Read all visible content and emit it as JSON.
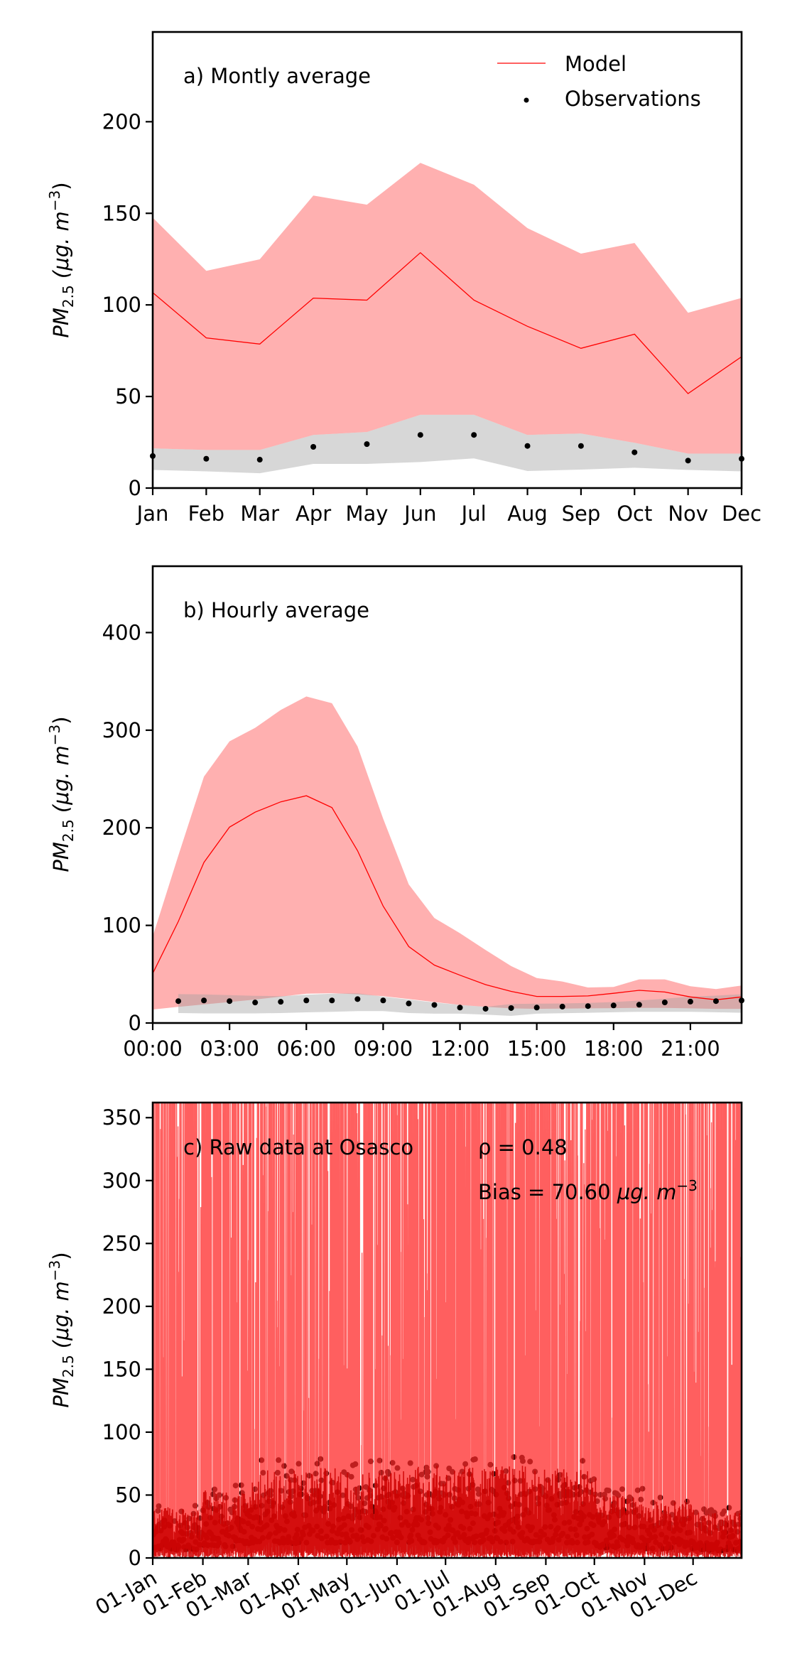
{
  "figure": {
    "colors": {
      "model_line": "#ff0000",
      "model_band": "#ffb0b0",
      "obs_band": "#a0a0a0",
      "obs_dot": "#000000",
      "axis": "#000000",
      "raw_model": "#ff2a2a"
    }
  },
  "legend": {
    "model_label": "Model",
    "obs_label": "Observations",
    "placement": "top-right of panel a"
  },
  "chart_data": [
    {
      "id": "a",
      "type": "line",
      "title": "a) Montly average",
      "xlabel": "",
      "ylabel_main": "PM",
      "ylabel_sub": "2.5",
      "ylabel_unit": " (μg. m",
      "ylabel_sup": "−3",
      "ylabel_close": ")",
      "categories": [
        "Jan",
        "Feb",
        "Mar",
        "Apr",
        "May",
        "Jun",
        "Jul",
        "Aug",
        "Sep",
        "Oct",
        "Nov",
        "Dec"
      ],
      "x": [
        0,
        1,
        2,
        3,
        4,
        5,
        6,
        7,
        8,
        9,
        10,
        11
      ],
      "xlim": [
        0,
        11
      ],
      "ylim": [
        0,
        249
      ],
      "yticks": [
        0,
        50,
        100,
        150,
        200
      ],
      "series": [
        {
          "name": "Model",
          "kind": "line",
          "values": [
            106.7,
            82,
            78.6,
            103.7,
            102.6,
            128.5,
            102.6,
            88.3,
            76.3,
            84,
            51.6,
            71.7
          ]
        },
        {
          "name": "Model band upper",
          "kind": "band_upper",
          "values": [
            147.6,
            118.6,
            124.9,
            159.7,
            154.7,
            177.5,
            165.6,
            141.9,
            128,
            133.8,
            95.7,
            103.8
          ]
        },
        {
          "name": "Model band lower",
          "kind": "band_lower",
          "values": [
            21.7,
            20.8,
            20.8,
            29,
            30.6,
            40,
            40,
            29,
            29.8,
            24.7,
            18.8,
            18.8
          ]
        },
        {
          "name": "Observations",
          "kind": "points",
          "values": [
            17.5,
            16,
            15.5,
            22.5,
            24,
            29,
            29,
            23,
            23,
            19.5,
            15,
            16
          ]
        },
        {
          "name": "Observations band upper",
          "kind": "obs_band_upper",
          "values": [
            21.7,
            20.8,
            20.8,
            29,
            30.6,
            40,
            40,
            29,
            29.8,
            24.7,
            18.8,
            18.8
          ]
        },
        {
          "name": "Observations band lower",
          "kind": "obs_band_lower",
          "values": [
            9.9,
            9.1,
            8.1,
            13.2,
            13.2,
            14.2,
            16.2,
            9.3,
            10.1,
            11.1,
            9.9,
            9.1
          ]
        },
        {
          "name": "Model band lower edge (overlap)",
          "kind": "overlap_lower",
          "values": [
            15.8,
            15.2,
            15.2,
            19.2,
            25.7,
            21.3,
            27.9,
            18.8,
            22,
            21.1,
            13.8,
            16.4
          ]
        }
      ]
    },
    {
      "id": "b",
      "type": "line",
      "title": "b) Hourly average",
      "xlabel": "",
      "ylabel_main": "PM",
      "ylabel_sub": "2.5",
      "ylabel_unit": " (μg. m",
      "ylabel_sup": "−3",
      "ylabel_close": ")",
      "xlim": [
        0,
        23
      ],
      "ylim": [
        0,
        468
      ],
      "yticks": [
        0,
        100,
        200,
        300,
        400
      ],
      "xticks": [
        0,
        3,
        6,
        9,
        12,
        15,
        18,
        21
      ],
      "xtick_labels": [
        "00:00",
        "03:00",
        "06:00",
        "09:00",
        "12:00",
        "15:00",
        "18:00",
        "21:00"
      ],
      "series": [
        {
          "name": "Model",
          "kind": "line",
          "x": [
            0,
            1,
            2,
            3,
            4,
            5,
            6,
            7,
            8,
            9,
            10,
            11,
            12,
            13,
            14,
            15,
            16,
            17,
            18,
            19,
            20,
            21,
            22,
            23
          ],
          "values": [
            50.7,
            104,
            164.5,
            200.7,
            216,
            226.6,
            232.8,
            220.7,
            176.6,
            119.7,
            78.3,
            59.3,
            49,
            39.3,
            32.4,
            27.2,
            27.2,
            27.7,
            30.4,
            33.5,
            31.7,
            26.7,
            23.8,
            26.7
          ]
        },
        {
          "name": "Model band upper",
          "kind": "band_upper",
          "x": [
            0,
            1,
            2,
            3,
            4,
            5,
            6,
            7,
            8,
            9,
            10,
            11,
            12,
            13,
            14,
            15,
            16,
            17,
            18,
            19,
            20,
            21,
            22,
            23
          ],
          "values": [
            88.6,
            171.4,
            252.4,
            288.6,
            302.4,
            320.7,
            334.5,
            327.6,
            283.4,
            209.3,
            142,
            107.6,
            92,
            74.8,
            58.3,
            46.1,
            42.5,
            36.4,
            36.9,
            44.7,
            44.7,
            37.7,
            34.8,
            38.4
          ]
        },
        {
          "name": "Model band lower",
          "kind": "band_lower",
          "x": [
            0,
            1,
            2,
            3,
            4,
            5,
            6,
            7,
            8,
            9,
            10,
            11,
            12,
            13,
            14,
            15,
            16,
            17,
            18,
            19,
            20,
            21,
            22,
            23
          ],
          "values": [
            13.8,
            16.5,
            19,
            21.5,
            24,
            27,
            30,
            30.5,
            29.5,
            27.5,
            24.5,
            21.5,
            18.5,
            16.5,
            15,
            14.5,
            14.8,
            15,
            15.2,
            15.5,
            15.5,
            15,
            14.5,
            14.5
          ]
        },
        {
          "name": "Observations",
          "kind": "points",
          "x": [
            1,
            2,
            3,
            4,
            5,
            6,
            7,
            8,
            9,
            10,
            11,
            12,
            13,
            14,
            15,
            16,
            17,
            18,
            19,
            20,
            21,
            22,
            23
          ],
          "values": [
            22.4,
            23.1,
            22.4,
            21,
            21.7,
            23.1,
            23.1,
            24.5,
            23.1,
            20,
            18.5,
            15.8,
            14.6,
            15.3,
            15.8,
            16.8,
            17.3,
            18,
            18.7,
            21.1,
            21.9,
            22.4,
            23.1
          ]
        },
        {
          "name": "Observations band upper",
          "kind": "obs_band_upper",
          "x": [
            1,
            2,
            3,
            4,
            5,
            6,
            7,
            8,
            9,
            10,
            11,
            12,
            13,
            14,
            15,
            16,
            17,
            18,
            19,
            20,
            21,
            22,
            23
          ],
          "values": [
            29.6,
            29.3,
            28.5,
            27.8,
            27.5,
            29,
            30,
            30.5,
            27,
            24,
            21,
            18.5,
            16.5,
            19.5,
            19.8,
            20,
            20.5,
            21.5,
            23,
            25,
            27,
            28,
            29.5
          ]
        },
        {
          "name": "Observations band lower",
          "kind": "obs_band_lower",
          "x": [
            1,
            2,
            3,
            4,
            5,
            6,
            7,
            8,
            9,
            10,
            11,
            12,
            13,
            14,
            15,
            16,
            17,
            18,
            19,
            20,
            21,
            22,
            23
          ],
          "values": [
            10.2,
            9.8,
            9.8,
            9.8,
            10.2,
            10.9,
            11.5,
            12.2,
            12.2,
            10.2,
            9.5,
            9.5,
            8.5,
            7.3,
            9.5,
            10,
            10.5,
            11,
            11.5,
            11.5,
            11.5,
            11,
            10.5
          ]
        }
      ]
    },
    {
      "id": "c",
      "type": "line",
      "title": "c) Raw data at Osasco",
      "annotation_rho": "ρ = 0.48",
      "annotation_bias_prefix": "Bias = 70.60 ",
      "annotation_bias_unit": "μg. m",
      "annotation_bias_sup": "−3",
      "rho": 0.48,
      "bias": 70.6,
      "ylabel_main": "PM",
      "ylabel_sub": "2.5",
      "ylabel_unit": " (μg. m",
      "ylabel_sup": "−3",
      "ylabel_close": ")",
      "xlim_days": [
        0,
        364
      ],
      "ylim": [
        0,
        362
      ],
      "yticks": [
        0,
        50,
        100,
        150,
        200,
        250,
        300,
        350
      ],
      "xticks_days": [
        0,
        31,
        59,
        90,
        120,
        151,
        181,
        212,
        243,
        273,
        304,
        334
      ],
      "xtick_labels": [
        "01-Jan",
        "01-Feb",
        "01-Mar",
        "01-Apr",
        "01-May",
        "01-Jun",
        "01-Jul",
        "01-Aug",
        "01-Sep",
        "01-Oct",
        "01-Nov",
        "01-Dec"
      ],
      "series": [
        {
          "name": "Model (hourly, many spikes exceed axis top)",
          "kind": "raw_line",
          "typical_range": [
            0,
            362
          ]
        },
        {
          "name": "Observations (hourly points)",
          "kind": "raw_points",
          "typical_range": [
            0,
            82
          ],
          "monthly_peak_envelope": [
            45,
            60,
            78,
            80,
            78,
            82,
            82,
            82,
            80,
            55,
            50,
            40
          ]
        }
      ]
    }
  ]
}
